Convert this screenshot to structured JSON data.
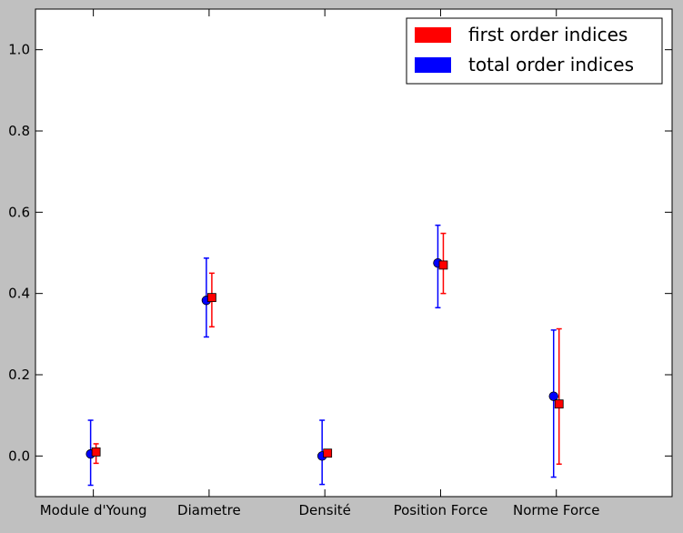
{
  "chart_data": {
    "type": "scatter",
    "categories": [
      "Module d'Young",
      "Diametre",
      "Densité",
      "Position Force",
      "Norme Force"
    ],
    "series": [
      {
        "name": "first order indices",
        "color": "#ff0000",
        "marker": "square",
        "values": [
          0.01,
          0.39,
          0.007,
          0.47,
          0.128
        ],
        "error_low": [
          -0.018,
          0.318,
          null,
          0.4,
          -0.02
        ],
        "error_high": [
          0.03,
          0.45,
          null,
          0.548,
          0.313
        ]
      },
      {
        "name": "total order indices",
        "color": "#0000ff",
        "marker": "circle",
        "values": [
          0.005,
          0.383,
          0.0,
          0.475,
          0.147
        ],
        "error_low": [
          -0.072,
          0.293,
          -0.07,
          0.365,
          -0.052
        ],
        "error_high": [
          0.088,
          0.487,
          0.088,
          0.568,
          0.31
        ]
      }
    ],
    "yticks": [
      "0.0",
      "0.2",
      "0.4",
      "0.6",
      "0.8",
      "1.0"
    ],
    "ylim": [
      -0.1,
      1.1
    ],
    "grid": false,
    "legend_position": "top-right",
    "xlabel": "",
    "ylabel": "",
    "title": ""
  }
}
